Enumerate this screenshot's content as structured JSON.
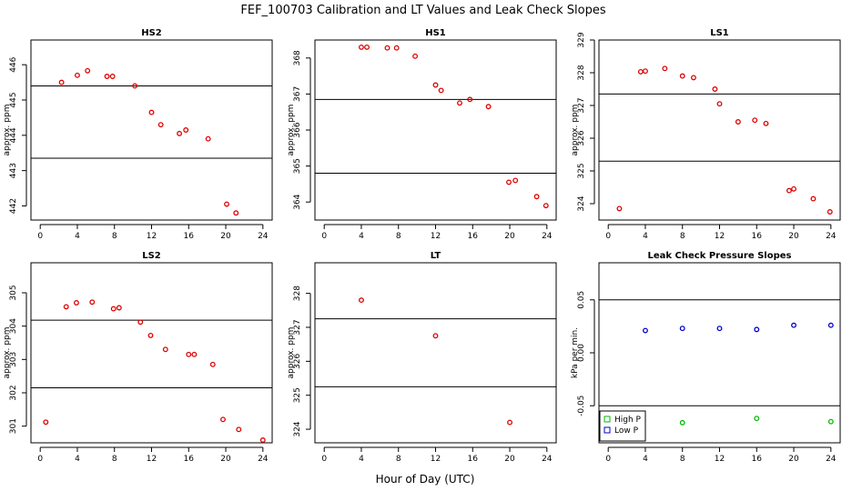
{
  "figure": {
    "title": "FEF_100703  Calibration and LT Values and Leak Check Slopes",
    "xlabel": "Hour of Day (UTC)"
  },
  "chart_data": [
    {
      "type": "scatter",
      "title": "HS2",
      "ylabel": "approx. ppm",
      "xlim": [
        -1,
        25
      ],
      "ylim": [
        441.6,
        446.7
      ],
      "xticks": [
        0,
        4,
        8,
        12,
        16,
        20,
        24
      ],
      "yticks": [
        442,
        443,
        444,
        445,
        446
      ],
      "hlines": [
        445.4,
        443.35
      ],
      "series": [
        {
          "name": "values",
          "color": "#dd0000",
          "x": [
            2.3,
            4,
            5.1,
            7.2,
            7.8,
            10.2,
            12,
            13,
            15,
            15.7,
            18.1,
            20.1,
            21.1
          ],
          "y": [
            445.5,
            445.7,
            445.83,
            445.67,
            445.67,
            445.4,
            444.65,
            444.3,
            444.05,
            444.15,
            443.9,
            442.05,
            441.8
          ]
        }
      ]
    },
    {
      "type": "scatter",
      "title": "HS1",
      "ylabel": "approx. ppm",
      "xlim": [
        -1,
        25
      ],
      "ylim": [
        363.5,
        368.5
      ],
      "xticks": [
        0,
        4,
        8,
        12,
        16,
        20,
        24
      ],
      "yticks": [
        364,
        365,
        366,
        367,
        368
      ],
      "hlines": [
        366.85,
        364.8
      ],
      "series": [
        {
          "name": "values",
          "color": "#dd0000",
          "x": [
            4,
            4.6,
            6.8,
            7.8,
            9.8,
            12,
            12.6,
            14.6,
            15.7,
            17.7,
            19.9,
            20.6,
            22.9,
            23.9
          ],
          "y": [
            368.3,
            368.3,
            368.28,
            368.28,
            368.05,
            367.25,
            367.1,
            366.75,
            366.85,
            366.65,
            364.55,
            364.6,
            364.15,
            363.9
          ]
        }
      ]
    },
    {
      "type": "scatter",
      "title": "LS1",
      "ylabel": "approx. ppm",
      "xlim": [
        -1,
        25
      ],
      "ylim": [
        323.5,
        329
      ],
      "xticks": [
        0,
        4,
        8,
        12,
        16,
        20,
        24
      ],
      "yticks": [
        324,
        325,
        326,
        327,
        328,
        329
      ],
      "hlines": [
        327.35,
        325.3
      ],
      "series": [
        {
          "name": "values",
          "color": "#dd0000",
          "x": [
            1.2,
            3.5,
            4,
            6.1,
            8,
            9.2,
            11.5,
            12,
            14,
            15.8,
            17,
            19.5,
            20,
            22.1,
            23.9
          ],
          "y": [
            323.85,
            328.03,
            328.05,
            328.13,
            327.9,
            327.85,
            327.5,
            327.05,
            326.5,
            326.55,
            326.45,
            324.4,
            324.45,
            324.15,
            323.75
          ]
        }
      ]
    },
    {
      "type": "scatter",
      "title": "LS2",
      "ylabel": "approx. ppm",
      "xlim": [
        -1,
        25
      ],
      "ylim": [
        300.5,
        305.9
      ],
      "xticks": [
        0,
        4,
        8,
        12,
        16,
        20,
        24
      ],
      "yticks": [
        301,
        302,
        303,
        304,
        305
      ],
      "hlines": [
        304.18,
        302.15
      ],
      "series": [
        {
          "name": "values",
          "color": "#dd0000",
          "x": [
            0.6,
            2.8,
            3.9,
            5.6,
            7.9,
            8.5,
            10.8,
            11.9,
            13.5,
            16,
            16.6,
            18.6,
            19.7,
            21.4,
            24
          ],
          "y": [
            301.12,
            304.58,
            304.7,
            304.72,
            304.52,
            304.55,
            304.12,
            303.72,
            303.3,
            303.15,
            303.15,
            302.85,
            301.2,
            300.9,
            300.4
          ]
        }
      ]
    },
    {
      "type": "scatter",
      "title": "LT",
      "ylabel": "approx. ppm",
      "xlim": [
        -1,
        25
      ],
      "ylim": [
        323.6,
        328.9
      ],
      "xticks": [
        0,
        4,
        8,
        12,
        16,
        20,
        24
      ],
      "yticks": [
        324,
        325,
        326,
        327,
        328
      ],
      "hlines": [
        327.25,
        325.25
      ],
      "series": [
        {
          "name": "values",
          "color": "#dd0000",
          "x": [
            4,
            12,
            20
          ],
          "y": [
            327.8,
            326.75,
            324.2
          ]
        }
      ]
    },
    {
      "type": "scatter",
      "title": "Leak Check Pressure Slopes",
      "ylabel": "kPa per min.",
      "xlim": [
        -1,
        25
      ],
      "ylim": [
        -0.085,
        0.085
      ],
      "xticks": [
        0,
        4,
        8,
        12,
        16,
        20,
        24
      ],
      "ytick_labels": [
        "-0.05",
        "0.00",
        "0.05"
      ],
      "yticks": [
        -0.05,
        0.0,
        0.05
      ],
      "hlines": [
        0.05,
        -0.05
      ],
      "legend": {
        "position": "bottom-left",
        "entries": [
          "High P",
          "Low P"
        ]
      },
      "series": [
        {
          "name": "High P",
          "color": "#00bb00",
          "x": [
            8,
            16,
            24
          ],
          "y": [
            -0.066,
            -0.062,
            -0.065
          ]
        },
        {
          "name": "Low P",
          "color": "#0000cc",
          "x": [
            4,
            8,
            12,
            16,
            20,
            24
          ],
          "y": [
            0.021,
            0.023,
            0.023,
            0.022,
            0.026,
            0.026
          ]
        }
      ]
    }
  ]
}
